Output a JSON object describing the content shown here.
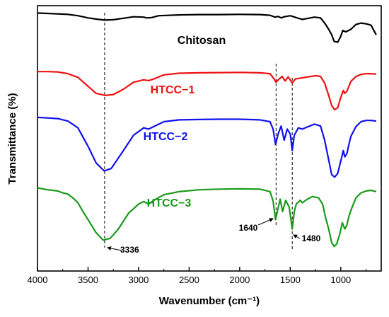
{
  "chart_data": {
    "type": "line",
    "xlabel": "Wavenumber (cm⁻¹)",
    "ylabel": "Transmittance (%)",
    "xlim": [
      4000,
      600
    ],
    "x_reversed": true,
    "x_ticks": [
      "4000",
      "3500",
      "3000",
      "2500",
      "2000",
      "1500",
      "1000"
    ],
    "y_tick_labels": false,
    "series": [
      {
        "name": "Chitosan",
        "color": "#000000",
        "offset": 3,
        "points": [
          [
            4000,
            0.99
          ],
          [
            3900,
            0.98
          ],
          [
            3800,
            0.97
          ],
          [
            3700,
            0.955
          ],
          [
            3600,
            0.92
          ],
          [
            3500,
            0.86
          ],
          [
            3400,
            0.82
          ],
          [
            3330,
            0.8
          ],
          [
            3250,
            0.81
          ],
          [
            3150,
            0.85
          ],
          [
            3050,
            0.89
          ],
          [
            2950,
            0.88
          ],
          [
            2920,
            0.86
          ],
          [
            2870,
            0.87
          ],
          [
            2800,
            0.92
          ],
          [
            2600,
            0.94
          ],
          [
            2400,
            0.95
          ],
          [
            2200,
            0.95
          ],
          [
            2000,
            0.955
          ],
          [
            1800,
            0.95
          ],
          [
            1700,
            0.93
          ],
          [
            1650,
            0.88
          ],
          [
            1620,
            0.9
          ],
          [
            1590,
            0.86
          ],
          [
            1560,
            0.89
          ],
          [
            1500,
            0.92
          ],
          [
            1420,
            0.85
          ],
          [
            1380,
            0.82
          ],
          [
            1320,
            0.85
          ],
          [
            1260,
            0.88
          ],
          [
            1200,
            0.86
          ],
          [
            1155,
            0.7
          ],
          [
            1120,
            0.55
          ],
          [
            1090,
            0.4
          ],
          [
            1065,
            0.22
          ],
          [
            1030,
            0.2
          ],
          [
            1000,
            0.36
          ],
          [
            980,
            0.52
          ],
          [
            950,
            0.48
          ],
          [
            900,
            0.55
          ],
          [
            850,
            0.68
          ],
          [
            800,
            0.72
          ],
          [
            750,
            0.7
          ],
          [
            700,
            0.66
          ],
          [
            650,
            0.4
          ]
        ]
      },
      {
        "name": "HTCC−1",
        "color": "#ee1111",
        "offset": 2,
        "points": [
          [
            4000,
            0.98
          ],
          [
            3900,
            0.98
          ],
          [
            3800,
            0.97
          ],
          [
            3700,
            0.93
          ],
          [
            3600,
            0.84
          ],
          [
            3500,
            0.62
          ],
          [
            3420,
            0.45
          ],
          [
            3330,
            0.4
          ],
          [
            3250,
            0.42
          ],
          [
            3150,
            0.55
          ],
          [
            3050,
            0.72
          ],
          [
            2950,
            0.78
          ],
          [
            2900,
            0.76
          ],
          [
            2850,
            0.8
          ],
          [
            2750,
            0.9
          ],
          [
            2600,
            0.94
          ],
          [
            2400,
            0.95
          ],
          [
            2200,
            0.955
          ],
          [
            2000,
            0.96
          ],
          [
            1800,
            0.95
          ],
          [
            1700,
            0.93
          ],
          [
            1660,
            0.8
          ],
          [
            1640,
            0.72
          ],
          [
            1610,
            0.8
          ],
          [
            1580,
            0.86
          ],
          [
            1550,
            0.75
          ],
          [
            1520,
            0.85
          ],
          [
            1480,
            0.7
          ],
          [
            1450,
            0.8
          ],
          [
            1400,
            0.82
          ],
          [
            1350,
            0.84
          ],
          [
            1300,
            0.86
          ],
          [
            1250,
            0.88
          ],
          [
            1200,
            0.86
          ],
          [
            1160,
            0.7
          ],
          [
            1120,
            0.4
          ],
          [
            1090,
            0.15
          ],
          [
            1060,
            0.05
          ],
          [
            1030,
            0.1
          ],
          [
            1000,
            0.35
          ],
          [
            975,
            0.52
          ],
          [
            960,
            0.45
          ],
          [
            940,
            0.5
          ],
          [
            920,
            0.62
          ],
          [
            900,
            0.74
          ],
          [
            850,
            0.86
          ],
          [
            800,
            0.91
          ],
          [
            750,
            0.93
          ],
          [
            700,
            0.93
          ],
          [
            650,
            0.92
          ]
        ]
      },
      {
        "name": "HTCC−2",
        "color": "#1111ee",
        "offset": 1,
        "points": [
          [
            4000,
            0.99
          ],
          [
            3900,
            0.98
          ],
          [
            3800,
            0.97
          ],
          [
            3700,
            0.93
          ],
          [
            3600,
            0.82
          ],
          [
            3500,
            0.52
          ],
          [
            3420,
            0.25
          ],
          [
            3340,
            0.12
          ],
          [
            3270,
            0.16
          ],
          [
            3150,
            0.45
          ],
          [
            3050,
            0.7
          ],
          [
            2950,
            0.82
          ],
          [
            2900,
            0.8
          ],
          [
            2850,
            0.84
          ],
          [
            2750,
            0.92
          ],
          [
            2600,
            0.95
          ],
          [
            2400,
            0.955
          ],
          [
            2200,
            0.96
          ],
          [
            2000,
            0.96
          ],
          [
            1800,
            0.95
          ],
          [
            1700,
            0.92
          ],
          [
            1670,
            0.8
          ],
          [
            1645,
            0.55
          ],
          [
            1620,
            0.72
          ],
          [
            1590,
            0.85
          ],
          [
            1560,
            0.62
          ],
          [
            1530,
            0.8
          ],
          [
            1500,
            0.72
          ],
          [
            1480,
            0.45
          ],
          [
            1460,
            0.7
          ],
          [
            1420,
            0.82
          ],
          [
            1380,
            0.8
          ],
          [
            1320,
            0.84
          ],
          [
            1260,
            0.88
          ],
          [
            1200,
            0.85
          ],
          [
            1160,
            0.62
          ],
          [
            1120,
            0.3
          ],
          [
            1090,
            0.06
          ],
          [
            1060,
            0.02
          ],
          [
            1030,
            0.08
          ],
          [
            1000,
            0.28
          ],
          [
            975,
            0.45
          ],
          [
            960,
            0.35
          ],
          [
            940,
            0.4
          ],
          [
            920,
            0.55
          ],
          [
            900,
            0.68
          ],
          [
            850,
            0.84
          ],
          [
            800,
            0.92
          ],
          [
            750,
            0.94
          ],
          [
            700,
            0.94
          ],
          [
            650,
            0.93
          ]
        ]
      },
      {
        "name": "HTCC−3",
        "color": "#1a9a1a",
        "offset": 0,
        "points": [
          [
            4000,
            0.96
          ],
          [
            3900,
            0.93
          ],
          [
            3800,
            0.91
          ],
          [
            3750,
            0.88
          ],
          [
            3700,
            0.86
          ],
          [
            3650,
            0.8
          ],
          [
            3600,
            0.72
          ],
          [
            3550,
            0.58
          ],
          [
            3500,
            0.45
          ],
          [
            3420,
            0.24
          ],
          [
            3350,
            0.12
          ],
          [
            3280,
            0.15
          ],
          [
            3200,
            0.3
          ],
          [
            3100,
            0.55
          ],
          [
            3000,
            0.7
          ],
          [
            2950,
            0.74
          ],
          [
            2900,
            0.7
          ],
          [
            2850,
            0.76
          ],
          [
            2750,
            0.85
          ],
          [
            2600,
            0.9
          ],
          [
            2400,
            0.93
          ],
          [
            2200,
            0.94
          ],
          [
            2000,
            0.945
          ],
          [
            1800,
            0.94
          ],
          [
            1700,
            0.9
          ],
          [
            1670,
            0.75
          ],
          [
            1645,
            0.45
          ],
          [
            1625,
            0.6
          ],
          [
            1600,
            0.78
          ],
          [
            1575,
            0.58
          ],
          [
            1545,
            0.76
          ],
          [
            1510,
            0.65
          ],
          [
            1480,
            0.3
          ],
          [
            1460,
            0.58
          ],
          [
            1440,
            0.7
          ],
          [
            1400,
            0.76
          ],
          [
            1380,
            0.72
          ],
          [
            1330,
            0.78
          ],
          [
            1280,
            0.82
          ],
          [
            1220,
            0.8
          ],
          [
            1180,
            0.7
          ],
          [
            1150,
            0.48
          ],
          [
            1120,
            0.3
          ],
          [
            1090,
            0.08
          ],
          [
            1065,
            0.02
          ],
          [
            1040,
            0.06
          ],
          [
            1010,
            0.22
          ],
          [
            985,
            0.4
          ],
          [
            960,
            0.3
          ],
          [
            940,
            0.36
          ],
          [
            920,
            0.5
          ],
          [
            895,
            0.62
          ],
          [
            850,
            0.8
          ],
          [
            800,
            0.88
          ],
          [
            750,
            0.91
          ],
          [
            700,
            0.92
          ],
          [
            650,
            0.9
          ]
        ]
      }
    ],
    "series_label_positions": [
      "top-right",
      "middle-left",
      "middle-left",
      "middle-left"
    ],
    "guide_lines": [
      {
        "x": 3336,
        "label": "3336"
      },
      {
        "x": 1640,
        "label": "1640"
      },
      {
        "x": 1480,
        "label": "1480"
      }
    ]
  }
}
